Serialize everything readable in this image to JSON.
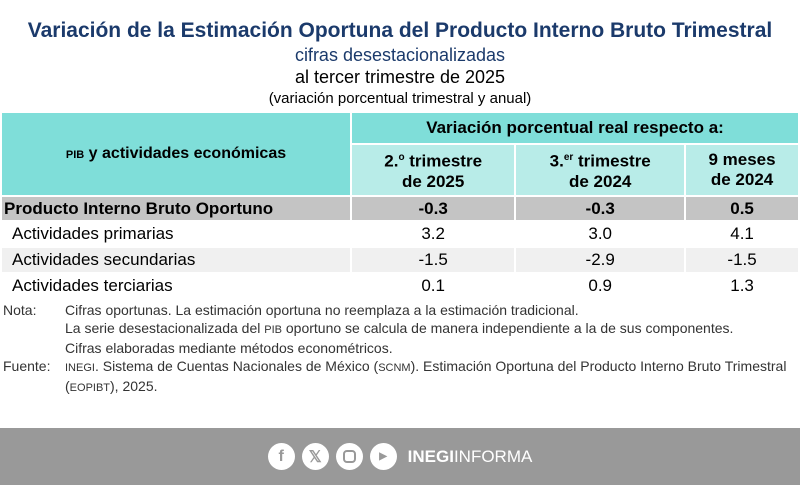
{
  "title": "Variación de la Estimación Oportuna del Producto Interno Bruto Trimestral",
  "subtitle1": "cifras desestacionalizadas",
  "subtitle2": "al tercer trimestre de 2025",
  "subtitle3": "(variación porcentual trimestral y anual)",
  "table": {
    "row_header_abbr": "PIB",
    "row_header": " y actividades económicas",
    "group_header": "Variación porcentual real respecto a:",
    "columns": [
      {
        "l1": "2.",
        "sup": "o",
        "l1b": " trimestre",
        "l2": "de 2025"
      },
      {
        "l1": "3.",
        "sup": "er",
        "l1b": " trimestre",
        "l2": "de 2024"
      },
      {
        "l1": "9 meses",
        "sup": "",
        "l1b": "",
        "l2": "de 2024"
      }
    ],
    "rows": [
      {
        "name": "Producto Interno Bruto Oportuno",
        "values": [
          "-0.3",
          "-0.3",
          "0.5"
        ]
      },
      {
        "name": "Actividades primarias",
        "values": [
          "3.2",
          "3.0",
          "4.1"
        ]
      },
      {
        "name": "Actividades secundarias",
        "values": [
          "-1.5",
          "-2.9",
          "-1.5"
        ]
      },
      {
        "name": "Actividades terciarias",
        "values": [
          "0.1",
          "0.9",
          "1.3"
        ]
      }
    ]
  },
  "notes": {
    "nota_label": "Nota:",
    "n1": "Cifras oportunas. La estimación oportuna no reemplaza a la estimación tradicional.",
    "n2a": "La serie desestacionalizada del ",
    "n2abbr": "PIB",
    "n2b": " oportuno se calcula de manera independiente a la de sus componentes.",
    "n3": "Cifras elaboradas mediante métodos econométricos.",
    "fuente_label": "Fuente:",
    "f1": "INEGI",
    "f2": ". Sistema de Cuentas Nacionales de México (",
    "f3": "SCNM",
    "f4": "). Estimación Oportuna del Producto Interno Bruto Trimestral (",
    "f5": "EOPIBT",
    "f6": "), 2025."
  },
  "footer": {
    "brand_bold": "INEGI",
    "brand": "INFORMA",
    "icons": [
      "facebook-icon",
      "x-icon",
      "instagram-icon",
      "youtube-icon"
    ]
  }
}
